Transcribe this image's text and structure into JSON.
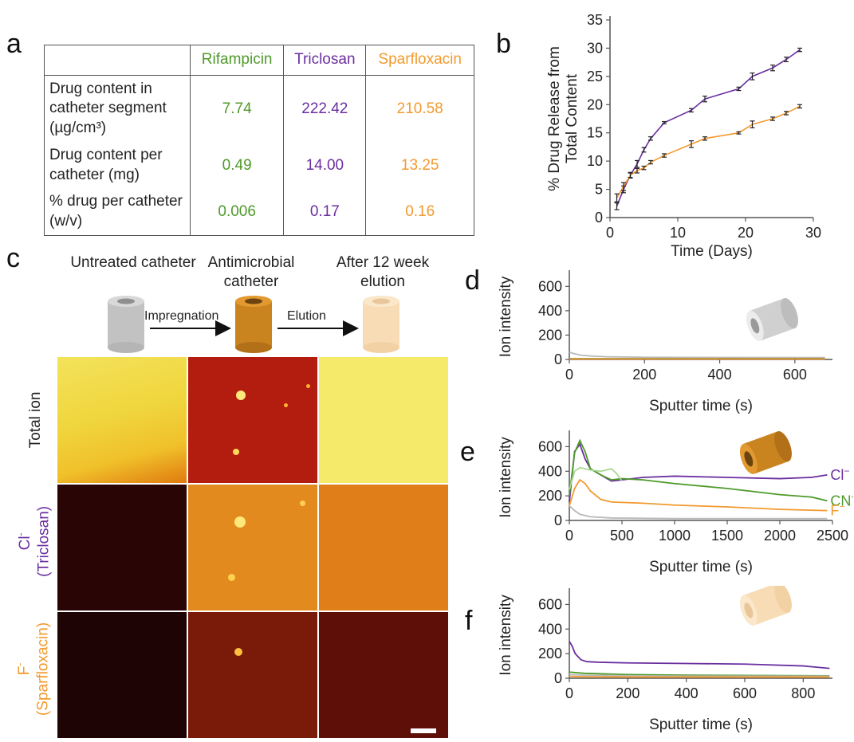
{
  "panels": {
    "a": "a",
    "b": "b",
    "c": "c",
    "d": "d",
    "e": "e",
    "f": "f"
  },
  "colors": {
    "rifampicin": "#4e9a2a",
    "triclosan": "#6b2fa0",
    "sparfloxacin": "#f29a2e",
    "gray": "#b9b9b9",
    "light_green": "#a8d890"
  },
  "table": {
    "headers": [
      "Rifampicin",
      "Triclosan",
      "Sparfloxacin"
    ],
    "rows": [
      {
        "label": "Drug content in catheter segment (µg/cm³)",
        "values": [
          "7.74",
          "222.42",
          "210.58"
        ]
      },
      {
        "label": "Drug content per catheter (mg)",
        "values": [
          "0.49",
          "14.00",
          "13.25"
        ]
      },
      {
        "label": "% drug per catheter (w/v)",
        "values": [
          "0.006",
          "0.17",
          "0.16"
        ]
      }
    ]
  },
  "schematic": {
    "stage1": "Untreated catheter",
    "stage2": "Antimicrobial catheter",
    "stage3": "After 12 week elution",
    "arrow1": "Impregnation",
    "arrow2": "Elution"
  },
  "image_rows": {
    "row1": "Total ion",
    "row2_ion": "Cl",
    "row2_sup": "-",
    "row2_drug": "(Triclosan)",
    "row3_ion": "F",
    "row3_sup": "-",
    "row3_drug": "(Sparfloxacin)"
  },
  "chart_data": [
    {
      "panel": "b",
      "type": "line",
      "ylabel": "% Drug Release from Total Content",
      "xlabel": "Time (Days)",
      "xlim": [
        0,
        30
      ],
      "ylim": [
        0,
        35
      ],
      "xticks": [
        0,
        10,
        20,
        30
      ],
      "yticks": [
        0,
        5,
        10,
        15,
        20,
        25,
        30,
        35
      ],
      "series": [
        {
          "color": "#6b2fa0",
          "x": [
            1,
            2,
            3,
            4,
            5,
            6,
            8,
            12,
            14,
            19,
            21,
            24,
            26,
            28
          ],
          "y": [
            2.0,
            5.0,
            7.5,
            9.5,
            12.0,
            14.0,
            16.8,
            19.0,
            21.0,
            22.8,
            25.0,
            26.5,
            28.0,
            29.7
          ],
          "err": [
            0.6,
            0.6,
            0.5,
            0.6,
            0.4,
            0.3,
            0.2,
            0.3,
            0.5,
            0.3,
            0.6,
            0.5,
            0.4,
            0.3
          ]
        },
        {
          "color": "#f29a2e",
          "x": [
            1,
            2,
            3,
            4,
            5,
            6,
            8,
            12,
            14,
            19,
            21,
            24,
            26,
            28
          ],
          "y": [
            3.5,
            5.5,
            7.5,
            8.3,
            8.8,
            9.8,
            11.0,
            13.0,
            14.0,
            15.0,
            16.5,
            17.5,
            18.5,
            19.7
          ],
          "err": [
            0.7,
            0.7,
            0.4,
            0.4,
            0.3,
            0.3,
            0.3,
            0.6,
            0.3,
            0.2,
            0.6,
            0.3,
            0.3,
            0.3
          ]
        }
      ]
    },
    {
      "panel": "d",
      "type": "line",
      "ylabel": "Ion intensity",
      "xlabel": "Sputter time (s)",
      "xlim": [
        0,
        700
      ],
      "ylim": [
        0,
        700
      ],
      "xticks": [
        0,
        200,
        400,
        600
      ],
      "yticks": [
        0,
        200,
        400,
        600
      ],
      "series": [
        {
          "color": "#b9b9b9",
          "x": [
            0,
            10,
            30,
            60,
            100,
            200,
            400,
            600,
            680
          ],
          "y": [
            60,
            50,
            35,
            28,
            22,
            18,
            16,
            15,
            15
          ]
        },
        {
          "color": "#6b2fa0",
          "x": [
            0,
            680
          ],
          "y": [
            5,
            5
          ]
        },
        {
          "color": "#4e9a2a",
          "x": [
            0,
            680
          ],
          "y": [
            6,
            6
          ]
        },
        {
          "color": "#f29a2e",
          "x": [
            0,
            680
          ],
          "y": [
            4,
            4
          ]
        }
      ]
    },
    {
      "panel": "e",
      "type": "line",
      "ylabel": "Ion intensity",
      "xlabel": "Sputter time (s)",
      "xlim": [
        0,
        2500
      ],
      "ylim": [
        0,
        700
      ],
      "xticks": [
        0,
        500,
        1000,
        1500,
        2000,
        2500
      ],
      "xticklabels": [
        "0",
        "500",
        "1000",
        "1500",
        "2000",
        "2500"
      ],
      "yticks": [
        0,
        200,
        400,
        600
      ],
      "series": [
        {
          "name": "Cl-",
          "color": "#6b2fa0",
          "x": [
            0,
            50,
            100,
            150,
            200,
            300,
            400,
            500,
            700,
            1000,
            1500,
            2000,
            2300,
            2450
          ],
          "y": [
            150,
            560,
            620,
            500,
            420,
            370,
            320,
            330,
            350,
            360,
            350,
            340,
            350,
            370
          ]
        },
        {
          "name": "CN-",
          "color": "#4e9a2a",
          "x": [
            0,
            50,
            100,
            150,
            200,
            300,
            400,
            500,
            700,
            1000,
            1500,
            2000,
            2300,
            2450
          ],
          "y": [
            200,
            550,
            650,
            560,
            420,
            370,
            330,
            340,
            330,
            300,
            260,
            210,
            190,
            160
          ]
        },
        {
          "color": "#a8d890",
          "x": [
            0,
            50,
            100,
            200,
            300,
            400,
            450,
            500
          ],
          "y": [
            250,
            400,
            430,
            410,
            400,
            420,
            380,
            320
          ]
        },
        {
          "name": "F-",
          "color": "#f29a2e",
          "x": [
            0,
            50,
            100,
            150,
            200,
            300,
            400,
            700,
            1000,
            1500,
            2000,
            2450
          ],
          "y": [
            120,
            260,
            330,
            300,
            240,
            170,
            150,
            140,
            125,
            110,
            90,
            80
          ]
        },
        {
          "color": "#b9b9b9",
          "x": [
            0,
            50,
            100,
            200,
            400,
            1000,
            2450
          ],
          "y": [
            120,
            80,
            50,
            30,
            20,
            15,
            15
          ]
        }
      ]
    },
    {
      "panel": "f",
      "type": "line",
      "ylabel": "Ion intensity",
      "xlabel": "Sputter time (s)",
      "xlim": [
        0,
        900
      ],
      "ylim": [
        0,
        700
      ],
      "xticks": [
        0,
        200,
        400,
        600,
        800
      ],
      "yticks": [
        0,
        200,
        400,
        600
      ],
      "series": [
        {
          "color": "#6b2fa0",
          "x": [
            0,
            10,
            20,
            40,
            60,
            100,
            200,
            400,
            600,
            800,
            890
          ],
          "y": [
            300,
            260,
            200,
            150,
            135,
            130,
            125,
            120,
            115,
            100,
            80
          ]
        },
        {
          "color": "#4e9a2a",
          "x": [
            0,
            50,
            200,
            400,
            890
          ],
          "y": [
            50,
            40,
            30,
            25,
            20
          ]
        },
        {
          "color": "#b9b9b9",
          "x": [
            0,
            50,
            200,
            400,
            890
          ],
          "y": [
            30,
            25,
            20,
            18,
            18
          ]
        },
        {
          "color": "#f29a2e",
          "x": [
            0,
            50,
            200,
            890
          ],
          "y": [
            15,
            12,
            10,
            10
          ]
        }
      ]
    }
  ]
}
